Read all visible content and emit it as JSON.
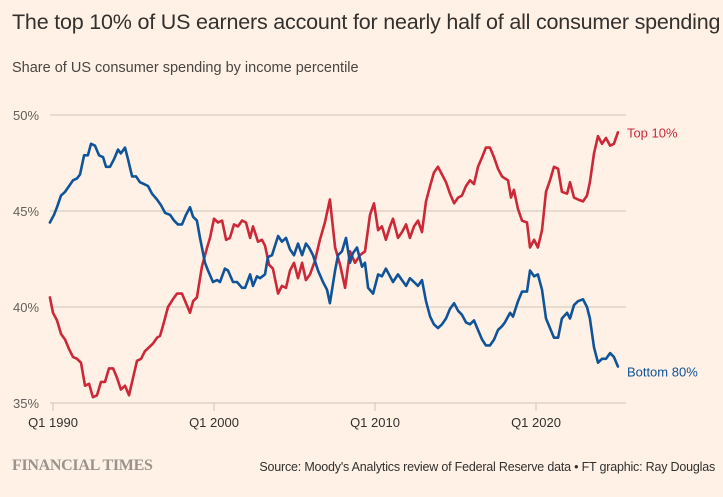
{
  "header": {
    "title": "The top 10% of US earners account for nearly half of all consumer spending",
    "subtitle": "Share of US consumer spending by income percentile"
  },
  "footer": {
    "logo": "FINANCIAL TIMES",
    "source": "Source: Moody's Analytics review of Federal Reserve data • FT graphic: Ray Douglas"
  },
  "colors": {
    "background": "#fff1e5",
    "top10": "#cc2838",
    "bottom80": "#0f5499",
    "grid": "#cfc3b8"
  },
  "chart_data": {
    "type": "line",
    "title": "The top 10% of US earners account for nearly half of all consumer spending",
    "subtitle": "Share of US consumer spending by income percentile",
    "xlabel": "",
    "ylabel": "",
    "xlim": [
      1989.8,
      2025.1
    ],
    "ylim": [
      35,
      50
    ],
    "grid": true,
    "y_ticks": [
      {
        "value": 50,
        "label": "50%"
      },
      {
        "value": 45,
        "label": "45%"
      },
      {
        "value": 40,
        "label": "40%"
      },
      {
        "value": 35,
        "label": "35%"
      }
    ],
    "x_ticks": [
      {
        "value": 1990,
        "label": "Q1 1990"
      },
      {
        "value": 2000,
        "label": "Q1 2000"
      },
      {
        "value": 2010,
        "label": "Q1 2010"
      },
      {
        "value": 2020,
        "label": "Q1 2020"
      }
    ],
    "legend": "inline-right",
    "series": [
      {
        "name": "Top 10%",
        "label": "Top 10%",
        "color": "#cc2838",
        "points": [
          [
            1989.81,
            40.5
          ],
          [
            1990.0,
            39.7
          ],
          [
            1990.25,
            39.3
          ],
          [
            1990.5,
            38.6
          ],
          [
            1990.75,
            38.3
          ],
          [
            1991.0,
            37.8
          ],
          [
            1991.24,
            37.4
          ],
          [
            1991.49,
            37.3
          ],
          [
            1991.74,
            37.1
          ],
          [
            1991.99,
            35.9
          ],
          [
            1992.24,
            36.0
          ],
          [
            1992.48,
            35.3
          ],
          [
            1992.73,
            35.4
          ],
          [
            1992.98,
            36.1
          ],
          [
            1993.23,
            36.1
          ],
          [
            1993.48,
            36.8
          ],
          [
            1993.73,
            36.8
          ],
          [
            1993.98,
            36.3
          ],
          [
            1994.22,
            35.7
          ],
          [
            1994.47,
            35.9
          ],
          [
            1994.72,
            35.4
          ],
          [
            1994.97,
            36.3
          ],
          [
            1995.22,
            37.2
          ],
          [
            1995.47,
            37.3
          ],
          [
            1995.71,
            37.7
          ],
          [
            1995.96,
            37.9
          ],
          [
            1996.21,
            38.1
          ],
          [
            1996.46,
            38.4
          ],
          [
            1996.65,
            38.5
          ],
          [
            1996.89,
            39.2
          ],
          [
            1997.14,
            40.0
          ],
          [
            1997.45,
            40.4
          ],
          [
            1997.7,
            40.7
          ],
          [
            1998.01,
            40.7
          ],
          [
            1998.26,
            40.2
          ],
          [
            1998.51,
            39.7
          ],
          [
            1998.7,
            40.3
          ],
          [
            1998.94,
            40.5
          ],
          [
            1999.25,
            42.1
          ],
          [
            1999.57,
            43.1
          ],
          [
            1999.75,
            43.6
          ],
          [
            2000.0,
            44.6
          ],
          [
            2000.25,
            44.4
          ],
          [
            2000.5,
            44.5
          ],
          [
            2000.75,
            43.5
          ],
          [
            2000.99,
            43.6
          ],
          [
            2001.24,
            44.3
          ],
          [
            2001.49,
            44.2
          ],
          [
            2001.74,
            44.5
          ],
          [
            2001.99,
            44.4
          ],
          [
            2002.24,
            43.6
          ],
          [
            2002.42,
            44.2
          ],
          [
            2002.73,
            43.4
          ],
          [
            2002.98,
            43.5
          ],
          [
            2003.17,
            43.2
          ],
          [
            2003.42,
            42.2
          ],
          [
            2003.66,
            42.0
          ],
          [
            2003.98,
            40.7
          ],
          [
            2004.22,
            41.1
          ],
          [
            2004.47,
            41.0
          ],
          [
            2004.72,
            41.9
          ],
          [
            2004.97,
            42.3
          ],
          [
            2005.22,
            41.5
          ],
          [
            2005.47,
            42.3
          ],
          [
            2005.71,
            41.4
          ],
          [
            2005.96,
            41.7
          ],
          [
            2006.27,
            42.4
          ],
          [
            2006.58,
            43.5
          ],
          [
            2006.89,
            44.4
          ],
          [
            2007.2,
            45.6
          ],
          [
            2007.52,
            43.1
          ],
          [
            2007.83,
            42.2
          ],
          [
            2008.14,
            41.0
          ],
          [
            2008.45,
            42.9
          ],
          [
            2008.76,
            42.3
          ],
          [
            2009.07,
            42.7
          ],
          [
            2009.38,
            42.9
          ],
          [
            2009.69,
            44.8
          ],
          [
            2009.94,
            45.4
          ],
          [
            2010.19,
            44.0
          ],
          [
            2010.43,
            44.2
          ],
          [
            2010.68,
            43.5
          ],
          [
            2010.93,
            44.2
          ],
          [
            2011.12,
            44.6
          ],
          [
            2011.43,
            43.6
          ],
          [
            2011.68,
            43.9
          ],
          [
            2011.93,
            44.3
          ],
          [
            2012.17,
            43.6
          ],
          [
            2012.42,
            44.2
          ],
          [
            2012.67,
            44.5
          ],
          [
            2012.92,
            43.9
          ],
          [
            2013.17,
            45.5
          ],
          [
            2013.42,
            46.3
          ],
          [
            2013.66,
            47.0
          ],
          [
            2013.91,
            47.3
          ],
          [
            2014.16,
            46.9
          ],
          [
            2014.41,
            46.5
          ],
          [
            2014.66,
            45.9
          ],
          [
            2014.91,
            45.4
          ],
          [
            2015.16,
            45.7
          ],
          [
            2015.4,
            45.8
          ],
          [
            2015.65,
            46.3
          ],
          [
            2015.9,
            46.6
          ],
          [
            2016.15,
            46.4
          ],
          [
            2016.4,
            47.3
          ],
          [
            2016.65,
            47.8
          ],
          [
            2016.89,
            48.3
          ],
          [
            2017.14,
            48.3
          ],
          [
            2017.39,
            47.8
          ],
          [
            2017.64,
            47.2
          ],
          [
            2017.89,
            46.8
          ],
          [
            2018.07,
            46.7
          ],
          [
            2018.26,
            46.6
          ],
          [
            2018.45,
            45.7
          ],
          [
            2018.63,
            46.1
          ],
          [
            2018.88,
            45.1
          ],
          [
            2019.13,
            44.5
          ],
          [
            2019.44,
            44.4
          ],
          [
            2019.63,
            43.1
          ],
          [
            2019.88,
            43.5
          ],
          [
            2020.12,
            43.1
          ],
          [
            2020.37,
            44.0
          ],
          [
            2020.62,
            46.0
          ],
          [
            2020.87,
            46.6
          ],
          [
            2021.12,
            47.3
          ],
          [
            2021.37,
            47.2
          ],
          [
            2021.61,
            46.0
          ],
          [
            2021.93,
            45.9
          ],
          [
            2022.11,
            46.5
          ],
          [
            2022.36,
            45.7
          ],
          [
            2022.61,
            45.6
          ],
          [
            2022.92,
            45.5
          ],
          [
            2023.17,
            45.8
          ],
          [
            2023.35,
            46.5
          ],
          [
            2023.6,
            48.0
          ],
          [
            2023.85,
            48.9
          ],
          [
            2024.1,
            48.5
          ],
          [
            2024.35,
            48.8
          ],
          [
            2024.6,
            48.4
          ],
          [
            2024.84,
            48.5
          ],
          [
            2025.09,
            49.1
          ]
        ]
      },
      {
        "name": "Bottom 80%",
        "label": "Bottom 80%",
        "color": "#0f5499",
        "points": [
          [
            1989.81,
            44.4
          ],
          [
            1990.06,
            44.8
          ],
          [
            1990.25,
            45.2
          ],
          [
            1990.5,
            45.8
          ],
          [
            1990.75,
            46.0
          ],
          [
            1991.0,
            46.3
          ],
          [
            1991.24,
            46.6
          ],
          [
            1991.49,
            46.7
          ],
          [
            1991.68,
            46.9
          ],
          [
            1991.93,
            47.9
          ],
          [
            1992.17,
            47.9
          ],
          [
            1992.36,
            48.5
          ],
          [
            1992.61,
            48.4
          ],
          [
            1992.86,
            47.9
          ],
          [
            1993.11,
            47.8
          ],
          [
            1993.29,
            47.3
          ],
          [
            1993.54,
            47.3
          ],
          [
            1993.79,
            47.7
          ],
          [
            1994.04,
            48.2
          ],
          [
            1994.22,
            48.0
          ],
          [
            1994.47,
            48.3
          ],
          [
            1994.66,
            47.7
          ],
          [
            1994.91,
            46.8
          ],
          [
            1995.16,
            46.8
          ],
          [
            1995.4,
            46.5
          ],
          [
            1995.65,
            46.4
          ],
          [
            1995.9,
            46.3
          ],
          [
            1996.15,
            45.9
          ],
          [
            1996.46,
            45.6
          ],
          [
            1996.71,
            45.3
          ],
          [
            1996.96,
            44.9
          ],
          [
            1997.27,
            44.8
          ],
          [
            1997.52,
            44.5
          ],
          [
            1997.76,
            44.3
          ],
          [
            1998.01,
            44.3
          ],
          [
            1998.26,
            44.8
          ],
          [
            1998.51,
            45.2
          ],
          [
            1998.7,
            44.7
          ],
          [
            1998.94,
            44.5
          ],
          [
            1999.13,
            43.6
          ],
          [
            1999.44,
            42.3
          ],
          [
            1999.63,
            41.9
          ],
          [
            1999.94,
            41.3
          ],
          [
            2000.19,
            41.4
          ],
          [
            2000.37,
            41.3
          ],
          [
            2000.68,
            42.0
          ],
          [
            2000.87,
            41.9
          ],
          [
            2001.18,
            41.3
          ],
          [
            2001.43,
            41.3
          ],
          [
            2001.74,
            41.0
          ],
          [
            2001.93,
            41.0
          ],
          [
            2002.24,
            41.7
          ],
          [
            2002.42,
            41.1
          ],
          [
            2002.67,
            41.6
          ],
          [
            2002.86,
            41.5
          ],
          [
            2003.17,
            41.7
          ],
          [
            2003.35,
            42.6
          ],
          [
            2003.6,
            42.7
          ],
          [
            2003.98,
            43.7
          ],
          [
            2004.22,
            43.4
          ],
          [
            2004.47,
            43.6
          ],
          [
            2004.72,
            43.0
          ],
          [
            2004.97,
            42.7
          ],
          [
            2005.22,
            43.3
          ],
          [
            2005.47,
            42.7
          ],
          [
            2005.71,
            43.3
          ],
          [
            2005.9,
            43.1
          ],
          [
            2006.15,
            42.7
          ],
          [
            2006.46,
            41.9
          ],
          [
            2006.77,
            41.3
          ],
          [
            2007.02,
            40.9
          ],
          [
            2007.2,
            40.2
          ],
          [
            2007.52,
            41.9
          ],
          [
            2007.7,
            42.7
          ],
          [
            2007.95,
            42.9
          ],
          [
            2008.2,
            43.6
          ],
          [
            2008.45,
            42.3
          ],
          [
            2008.63,
            42.8
          ],
          [
            2008.88,
            43.1
          ],
          [
            2009.19,
            42.1
          ],
          [
            2009.38,
            42.3
          ],
          [
            2009.57,
            41.0
          ],
          [
            2009.88,
            40.7
          ],
          [
            2010.19,
            41.7
          ],
          [
            2010.43,
            41.6
          ],
          [
            2010.68,
            42.0
          ],
          [
            2010.93,
            41.6
          ],
          [
            2011.12,
            41.3
          ],
          [
            2011.43,
            41.7
          ],
          [
            2011.68,
            41.4
          ],
          [
            2011.93,
            41.1
          ],
          [
            2012.17,
            41.5
          ],
          [
            2012.42,
            41.3
          ],
          [
            2012.67,
            41.1
          ],
          [
            2012.92,
            41.4
          ],
          [
            2013.17,
            40.3
          ],
          [
            2013.42,
            39.5
          ],
          [
            2013.66,
            39.1
          ],
          [
            2013.91,
            38.9
          ],
          [
            2014.16,
            39.1
          ],
          [
            2014.41,
            39.4
          ],
          [
            2014.66,
            39.9
          ],
          [
            2014.91,
            40.2
          ],
          [
            2015.16,
            39.8
          ],
          [
            2015.4,
            39.6
          ],
          [
            2015.65,
            39.2
          ],
          [
            2015.9,
            39.1
          ],
          [
            2016.15,
            39.3
          ],
          [
            2016.4,
            38.8
          ],
          [
            2016.65,
            38.3
          ],
          [
            2016.89,
            38.0
          ],
          [
            2017.14,
            38.0
          ],
          [
            2017.39,
            38.3
          ],
          [
            2017.64,
            38.8
          ],
          [
            2017.89,
            39.0
          ],
          [
            2018.07,
            39.2
          ],
          [
            2018.39,
            39.7
          ],
          [
            2018.57,
            39.5
          ],
          [
            2018.88,
            40.3
          ],
          [
            2019.13,
            40.8
          ],
          [
            2019.44,
            40.8
          ],
          [
            2019.63,
            41.9
          ],
          [
            2019.88,
            41.6
          ],
          [
            2020.12,
            41.7
          ],
          [
            2020.37,
            40.9
          ],
          [
            2020.62,
            39.4
          ],
          [
            2020.87,
            38.9
          ],
          [
            2021.12,
            38.4
          ],
          [
            2021.37,
            38.4
          ],
          [
            2021.61,
            39.4
          ],
          [
            2021.93,
            39.7
          ],
          [
            2022.11,
            39.4
          ],
          [
            2022.36,
            40.1
          ],
          [
            2022.61,
            40.3
          ],
          [
            2022.92,
            40.4
          ],
          [
            2023.17,
            40.0
          ],
          [
            2023.35,
            39.4
          ],
          [
            2023.6,
            37.9
          ],
          [
            2023.85,
            37.1
          ],
          [
            2024.1,
            37.3
          ],
          [
            2024.35,
            37.3
          ],
          [
            2024.6,
            37.6
          ],
          [
            2024.84,
            37.4
          ],
          [
            2025.09,
            36.9
          ]
        ]
      }
    ]
  }
}
